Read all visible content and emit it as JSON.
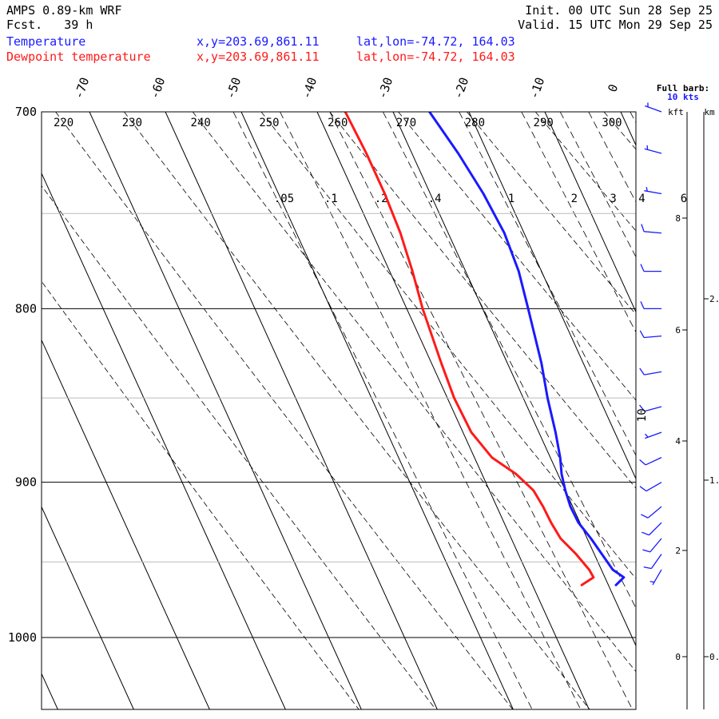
{
  "header": {
    "model": "AMPS 0.89-km WRF",
    "fcst": "Fcst.   39 h",
    "init": "Init. 00 UTC Sun 28 Sep 25",
    "valid": "Valid. 15 UTC Mon 29 Sep 25"
  },
  "legend": {
    "temperature_label": "Temperature",
    "dewpoint_label": "Dewpoint temperature",
    "xy": "x,y=203.69,861.11",
    "latlon": "lat,lon=-74.72, 164.03",
    "temperature_color": "#1a1aff",
    "dewpoint_color": "#ff1a1a"
  },
  "barb_legend": {
    "line1": "Full barb:",
    "line2": "10 kts"
  },
  "height_axis": {
    "kft_label": "kft",
    "km_label": "km",
    "kft_ticks": [
      "8",
      "6",
      "4",
      "2",
      "0"
    ],
    "km_ticks": [
      "2.",
      "1.",
      "0."
    ]
  },
  "chart_data": {
    "type": "line",
    "title": "Skew-T log-P sounding",
    "pressure_range_hpa": [
      700,
      1050
    ],
    "pressure_ticks": [
      700,
      800,
      900,
      1000
    ],
    "pressure_tick_labels": [
      "700",
      "800",
      "900",
      "1000"
    ],
    "minor_isobars": [
      750,
      850,
      950
    ],
    "isotherms_c": [
      -70,
      -60,
      -50,
      -40,
      -30,
      -20,
      -10,
      0
    ],
    "isotherm_labels": [
      "-70",
      "-60",
      "-50",
      "-40",
      "-30",
      "-20",
      "-10",
      "0"
    ],
    "dry_adiabats_k": [
      220,
      230,
      240,
      250,
      260,
      270,
      280,
      290,
      300
    ],
    "dry_adiabat_labels": [
      "220",
      "230",
      "240",
      "250",
      "260",
      "270",
      "280",
      "290",
      "300"
    ],
    "mixing_ratio_labels": [
      ".05",
      ".1",
      ".2",
      ".4",
      "1",
      "2",
      "3",
      "4",
      "6"
    ],
    "mixing_ratio_values_gkg": [
      0.05,
      0.1,
      0.2,
      0.4,
      1,
      2,
      3,
      4,
      6
    ],
    "series": [
      {
        "name": "Temperature",
        "pressure_hpa": [
          965,
          960,
          955,
          945,
          935,
          925,
          915,
          905,
          895,
          885,
          870,
          850,
          830,
          800,
          780,
          760,
          750,
          740,
          720,
          700
        ],
        "temperature_c": [
          -29,
          -27.5,
          -28.5,
          -29,
          -29.5,
          -30.2,
          -30.3,
          -30,
          -29.5,
          -28.7,
          -27.8,
          -26.8,
          -25.5,
          -24,
          -23,
          -22.6,
          -22.8,
          -23,
          -23.9,
          -25.2
        ]
      },
      {
        "name": "Dewpoint temperature",
        "pressure_hpa": [
          965,
          960,
          955,
          945,
          935,
          925,
          915,
          905,
          895,
          885,
          870,
          850,
          830,
          800,
          780,
          760,
          740,
          720,
          700
        ],
        "temperature_c": [
          -33.5,
          -31.5,
          -31.6,
          -32.4,
          -33.5,
          -33.8,
          -33.9,
          -34.2,
          -35.5,
          -37.7,
          -38.9,
          -39.1,
          -38.7,
          -37.9,
          -37,
          -36.3,
          -36,
          -36,
          -36.3
        ]
      }
    ],
    "wind_barbs": [
      {
        "pressure_hpa": 955,
        "direction_deg": 210,
        "speed_kt": 5
      },
      {
        "pressure_hpa": 945,
        "direction_deg": 215,
        "speed_kt": 10
      },
      {
        "pressure_hpa": 935,
        "direction_deg": 220,
        "speed_kt": 10
      },
      {
        "pressure_hpa": 925,
        "direction_deg": 225,
        "speed_kt": 10
      },
      {
        "pressure_hpa": 915,
        "direction_deg": 230,
        "speed_kt": 10
      },
      {
        "pressure_hpa": 900,
        "direction_deg": 240,
        "speed_kt": 10
      },
      {
        "pressure_hpa": 885,
        "direction_deg": 245,
        "speed_kt": 10
      },
      {
        "pressure_hpa": 870,
        "direction_deg": 250,
        "speed_kt": 5
      },
      {
        "pressure_hpa": 855,
        "direction_deg": 255,
        "speed_kt": 10
      },
      {
        "pressure_hpa": 835,
        "direction_deg": 260,
        "speed_kt": 10
      },
      {
        "pressure_hpa": 815,
        "direction_deg": 265,
        "speed_kt": 10
      },
      {
        "pressure_hpa": 800,
        "direction_deg": 270,
        "speed_kt": 10
      },
      {
        "pressure_hpa": 780,
        "direction_deg": 270,
        "speed_kt": 10
      },
      {
        "pressure_hpa": 760,
        "direction_deg": 275,
        "speed_kt": 10
      },
      {
        "pressure_hpa": 740,
        "direction_deg": 280,
        "speed_kt": 5
      },
      {
        "pressure_hpa": 720,
        "direction_deg": 285,
        "speed_kt": 5
      },
      {
        "pressure_hpa": 700,
        "direction_deg": 290,
        "speed_kt": 5
      }
    ],
    "wind_speed_annotation": "10"
  }
}
